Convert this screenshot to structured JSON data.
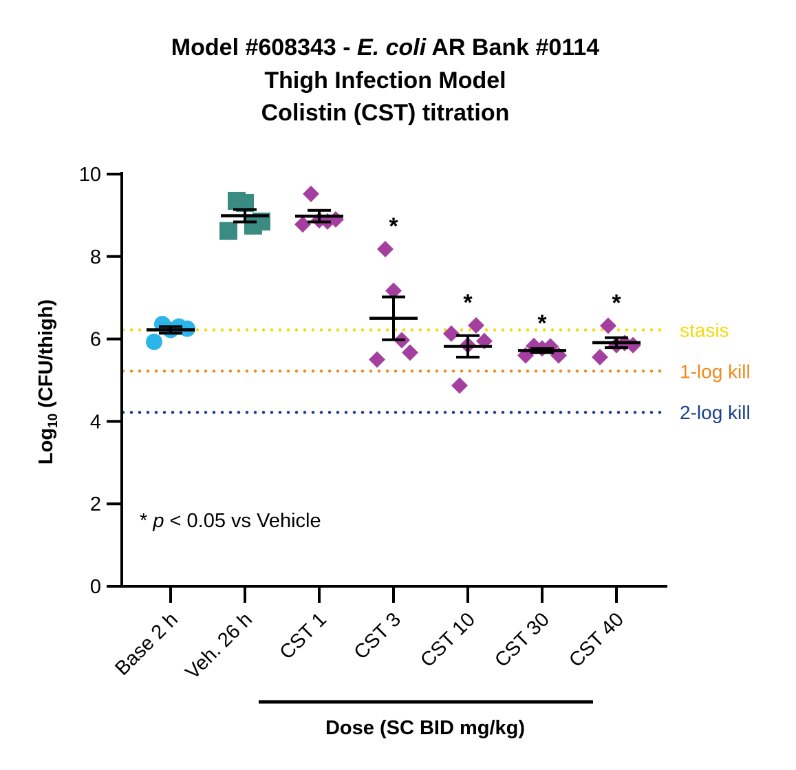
{
  "chart_data": {
    "type": "scatter",
    "title_lines": [
      {
        "pre": "Model #608343 - ",
        "italic": "E. coli",
        "post": " AR Bank #0114"
      },
      {
        "pre": "Thigh Infection Model",
        "italic": "",
        "post": ""
      },
      {
        "pre": "Colistin (CST) titration",
        "italic": "",
        "post": ""
      }
    ],
    "ylabel_main": "Log",
    "ylabel_sub": "10",
    "ylabel_rest": " (CFU/thigh)",
    "xlabel": "Dose (SC BID mg/kg)",
    "ylim": [
      0,
      10
    ],
    "yticks": [
      "0",
      "2",
      "4",
      "6",
      "8",
      "10"
    ],
    "categories": [
      "Base 2 h",
      "Veh. 26 h",
      "CST 1",
      "CST 3",
      "CST 10",
      "CST 30",
      "CST 40"
    ],
    "groups": [
      {
        "category": "Base 2 h",
        "marker": "circle",
        "color": "#2BB5E8",
        "points": [
          5.93,
          6.36,
          6.22,
          6.3,
          6.25
        ],
        "mean": 6.22,
        "sem": 0.08,
        "significant": false
      },
      {
        "category": "Veh. 26 h",
        "marker": "square",
        "color": "#3A8C83",
        "points": [
          8.62,
          9.35,
          9.3,
          8.75,
          8.85
        ],
        "mean": 8.99,
        "sem": 0.15,
        "significant": false
      },
      {
        "category": "CST 1",
        "marker": "diamond",
        "color": "#A43F9F",
        "points": [
          8.78,
          9.52,
          8.88,
          8.85,
          8.9
        ],
        "mean": 8.98,
        "sem": 0.14,
        "significant": false
      },
      {
        "category": "CST 3",
        "marker": "diamond",
        "color": "#A43F9F",
        "points": [
          5.5,
          8.18,
          7.17,
          5.97,
          5.67
        ],
        "mean": 6.5,
        "sem": 0.52,
        "significant": true
      },
      {
        "category": "CST 10",
        "marker": "diamond",
        "color": "#A43F9F",
        "points": [
          6.13,
          4.87,
          5.85,
          6.33,
          5.95
        ],
        "mean": 5.82,
        "sem": 0.26,
        "significant": true
      },
      {
        "category": "CST 30",
        "marker": "diamond",
        "color": "#A43F9F",
        "points": [
          5.6,
          5.83,
          5.77,
          5.82,
          5.6
        ],
        "mean": 5.72,
        "sem": 0.05,
        "significant": true
      },
      {
        "category": "CST 40",
        "marker": "diamond",
        "color": "#A43F9F",
        "points": [
          5.56,
          6.32,
          5.85,
          5.9,
          5.85
        ],
        "mean": 5.91,
        "sem": 0.12,
        "significant": true
      }
    ],
    "reference_lines": [
      {
        "label": "stasis",
        "y": 6.22,
        "color": "#F5D90A"
      },
      {
        "label": "1-log kill",
        "y": 5.22,
        "color": "#F08A1E"
      },
      {
        "label": "2-log kill",
        "y": 4.22,
        "color": "#1B3F8B"
      }
    ],
    "significance_symbol": "*",
    "note": {
      "star": "* ",
      "p": "p",
      "rest": " < 0.05 vs Vehicle"
    }
  }
}
